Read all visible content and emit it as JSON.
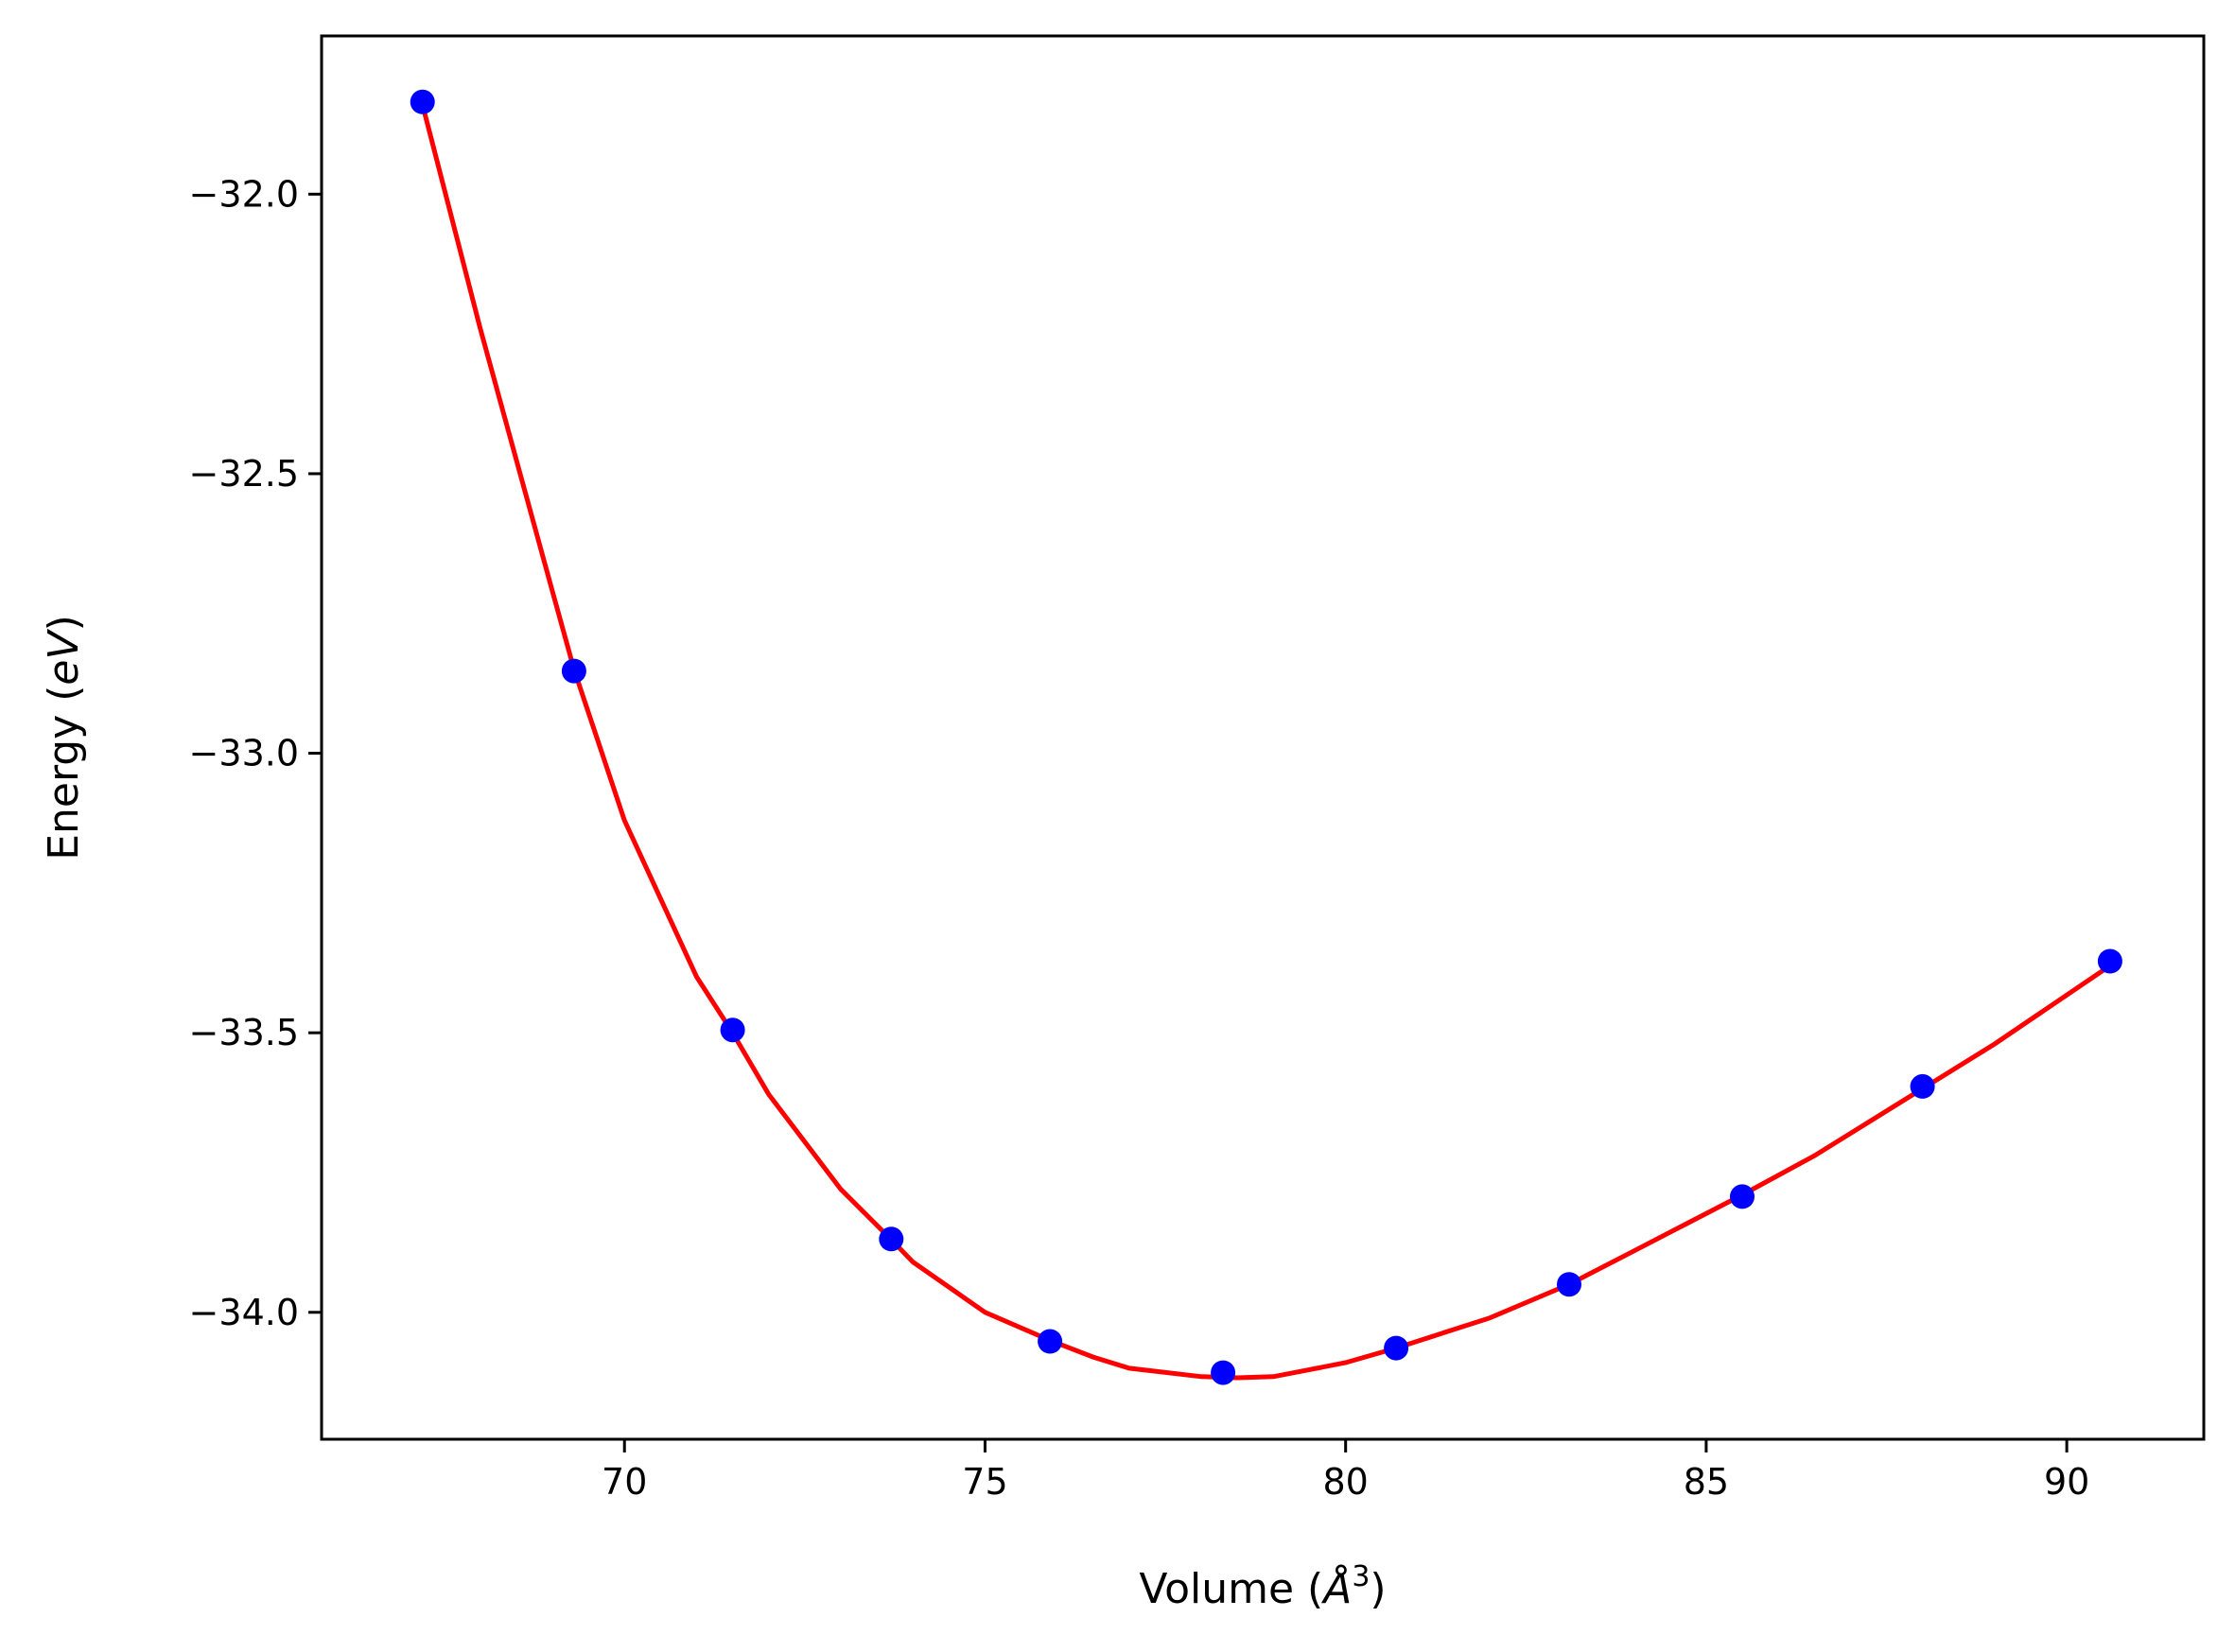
{
  "chart_data": {
    "type": "scatter",
    "title": "",
    "xlabel": {
      "prefix": "Volume (",
      "symbol": "Å",
      "sup": "3",
      "suffix": ")"
    },
    "ylabel": {
      "prefix": "Energy (",
      "symbol": "eV",
      "suffix": ")"
    },
    "xlim": [
      65.8,
      91.9
    ],
    "ylim": [
      -34.227,
      -31.717
    ],
    "xticks": [
      70,
      75,
      80,
      85,
      90
    ],
    "xtick_labels": [
      "70",
      "75",
      "80",
      "85",
      "90"
    ],
    "yticks": [
      -32.0,
      -32.5,
      -33.0,
      -33.5,
      -34.0
    ],
    "ytick_labels": [
      "−32.0",
      "−32.5",
      "−33.0",
      "−33.5",
      "−34.0"
    ],
    "grid": false,
    "legend": "none",
    "series": [
      {
        "kind": "points",
        "color": "#0000ff",
        "x": [
          67.2,
          69.3,
          71.5,
          73.7,
          75.9,
          78.3,
          80.7,
          83.1,
          85.5,
          88.0,
          90.6
        ],
        "y": [
          -31.835,
          -32.853,
          -33.495,
          -33.869,
          -34.052,
          -34.108,
          -34.064,
          -33.95,
          -33.793,
          -33.596,
          -33.372
        ]
      },
      {
        "kind": "fit-line",
        "color": "#ff0000",
        "x": [
          67.2,
          68.0,
          69.0,
          69.3,
          70.0,
          71.0,
          71.5,
          72.0,
          73.0,
          73.7,
          74.0,
          75.0,
          75.9,
          76.5,
          77.0,
          78.0,
          78.5,
          79.0,
          80.0,
          80.7,
          82.0,
          83.1,
          84.0,
          85.5,
          86.5,
          88.0,
          89.0,
          90.6
        ],
        "y": [
          -31.84,
          -32.24,
          -32.71,
          -32.85,
          -33.12,
          -33.4,
          -33.5,
          -33.61,
          -33.78,
          -33.87,
          -33.91,
          -34.0,
          -34.05,
          -34.08,
          -34.1,
          -34.115,
          -34.117,
          -34.115,
          -34.09,
          -34.064,
          -34.01,
          -33.95,
          -33.89,
          -33.79,
          -33.72,
          -33.6,
          -33.52,
          -33.38
        ]
      }
    ]
  }
}
